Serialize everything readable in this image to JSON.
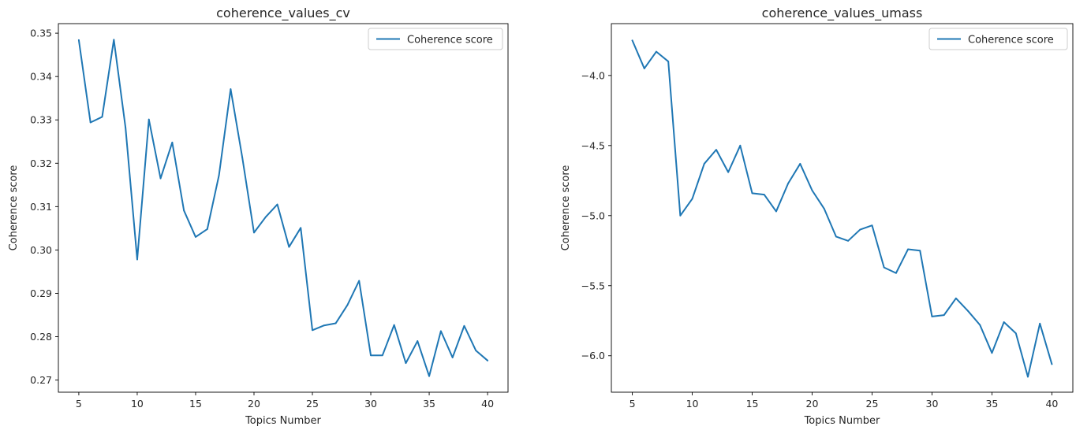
{
  "chart_data": [
    {
      "type": "line",
      "title": "coherence_values_cv",
      "xlabel": "Topics Number",
      "ylabel": "Coherence score",
      "xlim": [
        3.25,
        41.75
      ],
      "ylim": [
        0.2672,
        0.3522
      ],
      "xticks": [
        5,
        10,
        15,
        20,
        25,
        30,
        35,
        40
      ],
      "xtick_labels": [
        "5",
        "10",
        "15",
        "20",
        "25",
        "30",
        "35",
        "40"
      ],
      "yticks": [
        0.27,
        0.28,
        0.29,
        0.3,
        0.31,
        0.32,
        0.33,
        0.34,
        0.35
      ],
      "ytick_labels": [
        "0.27",
        "0.28",
        "0.29",
        "0.30",
        "0.31",
        "0.32",
        "0.33",
        "0.34",
        "0.35"
      ],
      "grid": false,
      "legend_position": "top-right",
      "color": "#1f77b4",
      "series": [
        {
          "name": "Coherence score",
          "x": [
            5,
            6,
            7,
            8,
            9,
            10,
            11,
            12,
            13,
            14,
            15,
            16,
            17,
            18,
            19,
            20,
            21,
            22,
            23,
            24,
            25,
            26,
            27,
            28,
            29,
            30,
            31,
            32,
            33,
            34,
            35,
            36,
            37,
            38,
            39,
            40
          ],
          "y": [
            0.3484,
            0.3294,
            0.3307,
            0.3485,
            0.3282,
            0.2978,
            0.3301,
            0.3165,
            0.3248,
            0.3091,
            0.303,
            0.3048,
            0.3172,
            0.3371,
            0.3213,
            0.304,
            0.3076,
            0.3105,
            0.3007,
            0.3051,
            0.2815,
            0.2826,
            0.2831,
            0.2873,
            0.2929,
            0.2757,
            0.2757,
            0.2827,
            0.2739,
            0.279,
            0.2709,
            0.2813,
            0.2752,
            0.2825,
            0.2768,
            0.2745
          ]
        }
      ]
    },
    {
      "type": "line",
      "title": "coherence_values_umass",
      "xlabel": "Topics Number",
      "ylabel": "Coherence score",
      "xlim": [
        3.25,
        41.75
      ],
      "ylim": [
        -6.26,
        -3.63
      ],
      "xticks": [
        5,
        10,
        15,
        20,
        25,
        30,
        35,
        40
      ],
      "xtick_labels": [
        "5",
        "10",
        "15",
        "20",
        "25",
        "30",
        "35",
        "40"
      ],
      "yticks": [
        -4.0,
        -4.5,
        -5.0,
        -5.5,
        -6.0
      ],
      "ytick_labels": [
        "−4.0",
        "−4.5",
        "−5.0",
        "−5.5",
        "−6.0"
      ],
      "grid": false,
      "legend_position": "top-right",
      "color": "#1f77b4",
      "series": [
        {
          "name": "Coherence score",
          "x": [
            5,
            6,
            7,
            8,
            9,
            10,
            11,
            12,
            13,
            14,
            15,
            16,
            17,
            18,
            19,
            20,
            21,
            22,
            23,
            24,
            25,
            26,
            27,
            28,
            29,
            30,
            31,
            32,
            33,
            34,
            35,
            36,
            37,
            38,
            39,
            40
          ],
          "y": [
            -3.75,
            -3.95,
            -3.83,
            -3.9,
            -5.0,
            -4.88,
            -4.63,
            -4.53,
            -4.69,
            -4.5,
            -4.84,
            -4.85,
            -4.97,
            -4.77,
            -4.63,
            -4.82,
            -4.95,
            -5.15,
            -5.18,
            -5.1,
            -5.07,
            -5.37,
            -5.41,
            -5.24,
            -5.25,
            -5.72,
            -5.71,
            -5.59,
            -5.68,
            -5.78,
            -5.98,
            -5.76,
            -5.84,
            -6.15,
            -5.77,
            -6.06
          ]
        }
      ]
    }
  ]
}
